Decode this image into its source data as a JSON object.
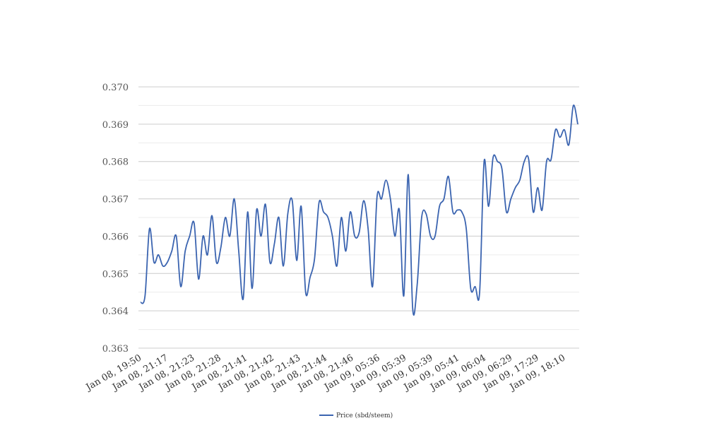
{
  "chart_data": {
    "type": "line",
    "title": "",
    "xlabel": "",
    "ylabel": "",
    "ylim": [
      0.363,
      0.37
    ],
    "y_ticks": [
      "0.363",
      "0.364",
      "0.365",
      "0.366",
      "0.367",
      "0.368",
      "0.369",
      "0.370"
    ],
    "grid": true,
    "legend_position": "bottom",
    "x_tick_labels": [
      "Jan 08, 19:50",
      "Jan 08, 21:17",
      "Jan 08, 21:23",
      "Jan 08, 21:28",
      "Jan 08, 21:41",
      "Jan 08, 21:42",
      "Jan 08, 21:43",
      "Jan 08, 21:44",
      "Jan 08, 21:46",
      "Jan 09, 05:36",
      "Jan 09, 05:39",
      "Jan 09, 05:39",
      "Jan 09, 05:41",
      "Jan 09, 06:04",
      "Jan 09, 06:29",
      "Jan 09, 17:29",
      "Jan 09, 18:10"
    ],
    "series": [
      {
        "name": "Price (sbd/steem)",
        "color": "#3b64b0",
        "values": [
          0.36422,
          0.3644,
          0.3662,
          0.3653,
          0.3655,
          0.3652,
          0.3653,
          0.3656,
          0.366,
          0.36465,
          0.3656,
          0.366,
          0.36635,
          0.36485,
          0.366,
          0.3655,
          0.36655,
          0.3653,
          0.3657,
          0.3665,
          0.366,
          0.367,
          0.3656,
          0.36432,
          0.36665,
          0.3646,
          0.3667,
          0.366,
          0.36685,
          0.3653,
          0.3658,
          0.3665,
          0.3652,
          0.3666,
          0.36695,
          0.36535,
          0.3668,
          0.3645,
          0.3649,
          0.3654,
          0.3669,
          0.36665,
          0.3665,
          0.366,
          0.3652,
          0.3665,
          0.3656,
          0.36665,
          0.366,
          0.3661,
          0.36695,
          0.3662,
          0.36465,
          0.36705,
          0.367,
          0.3675,
          0.367,
          0.366,
          0.3667,
          0.3644,
          0.36765,
          0.36405,
          0.3647,
          0.3665,
          0.3666,
          0.366,
          0.366,
          0.3668,
          0.367,
          0.3676,
          0.36665,
          0.3667,
          0.36665,
          0.3662,
          0.3646,
          0.36465,
          0.3645,
          0.368,
          0.3668,
          0.3681,
          0.368,
          0.3678,
          0.36665,
          0.367,
          0.3673,
          0.3675,
          0.368,
          0.36805,
          0.36665,
          0.3673,
          0.3667,
          0.368,
          0.36805,
          0.36885,
          0.36865,
          0.36885,
          0.36845,
          0.3695,
          0.369
        ]
      }
    ]
  }
}
